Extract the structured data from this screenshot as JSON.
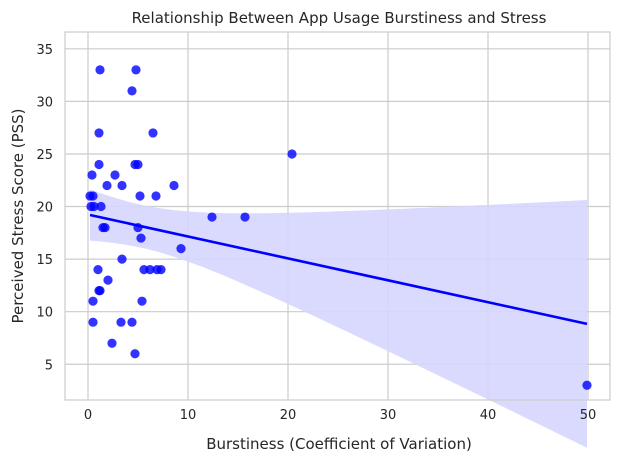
{
  "chart_data": {
    "type": "scatter",
    "title": "Relationship Between App Usage Burstiness and Stress",
    "xlabel": "Burstiness (Coefficient of Variation)",
    "ylabel": "Perceived Stress Score (PSS)",
    "xlim": [
      -2.3,
      52.2
    ],
    "ylim": [
      1.6,
      36.6
    ],
    "xticks": [
      0,
      10,
      20,
      30,
      40,
      50
    ],
    "yticks": [
      5,
      10,
      15,
      20,
      25,
      30,
      35
    ],
    "grid": true,
    "regression": {
      "show": true,
      "confidence_band": true,
      "level": 0.95
    },
    "colors": {
      "points": "#0000ff",
      "line": "#0000ff",
      "band": "#d6d6ff",
      "grid": "#cccccc"
    },
    "points": [
      [
        1.2,
        33
      ],
      [
        4.8,
        33
      ],
      [
        4.4,
        31
      ],
      [
        1.1,
        27
      ],
      [
        6.5,
        27
      ],
      [
        1.1,
        24
      ],
      [
        4.7,
        24
      ],
      [
        5.0,
        24
      ],
      [
        0.4,
        23
      ],
      [
        2.7,
        23
      ],
      [
        1.9,
        22
      ],
      [
        3.4,
        22
      ],
      [
        8.6,
        22
      ],
      [
        0.2,
        21
      ],
      [
        0.5,
        21
      ],
      [
        5.2,
        21
      ],
      [
        6.8,
        21
      ],
      [
        0.3,
        20
      ],
      [
        0.6,
        20
      ],
      [
        1.3,
        20
      ],
      [
        12.4,
        19
      ],
      [
        15.7,
        19
      ],
      [
        1.5,
        18
      ],
      [
        1.7,
        18
      ],
      [
        5.0,
        18
      ],
      [
        5.3,
        17
      ],
      [
        9.3,
        16
      ],
      [
        3.4,
        15
      ],
      [
        1.0,
        14
      ],
      [
        5.6,
        14
      ],
      [
        6.2,
        14
      ],
      [
        6.9,
        14
      ],
      [
        7.3,
        14
      ],
      [
        2.0,
        13
      ],
      [
        1.1,
        12
      ],
      [
        1.2,
        12
      ],
      [
        0.5,
        11
      ],
      [
        5.4,
        11
      ],
      [
        0.5,
        9
      ],
      [
        3.3,
        9
      ],
      [
        4.4,
        9
      ],
      [
        2.4,
        7
      ],
      [
        4.7,
        6
      ],
      [
        20.4,
        25
      ],
      [
        49.9,
        3
      ]
    ]
  }
}
